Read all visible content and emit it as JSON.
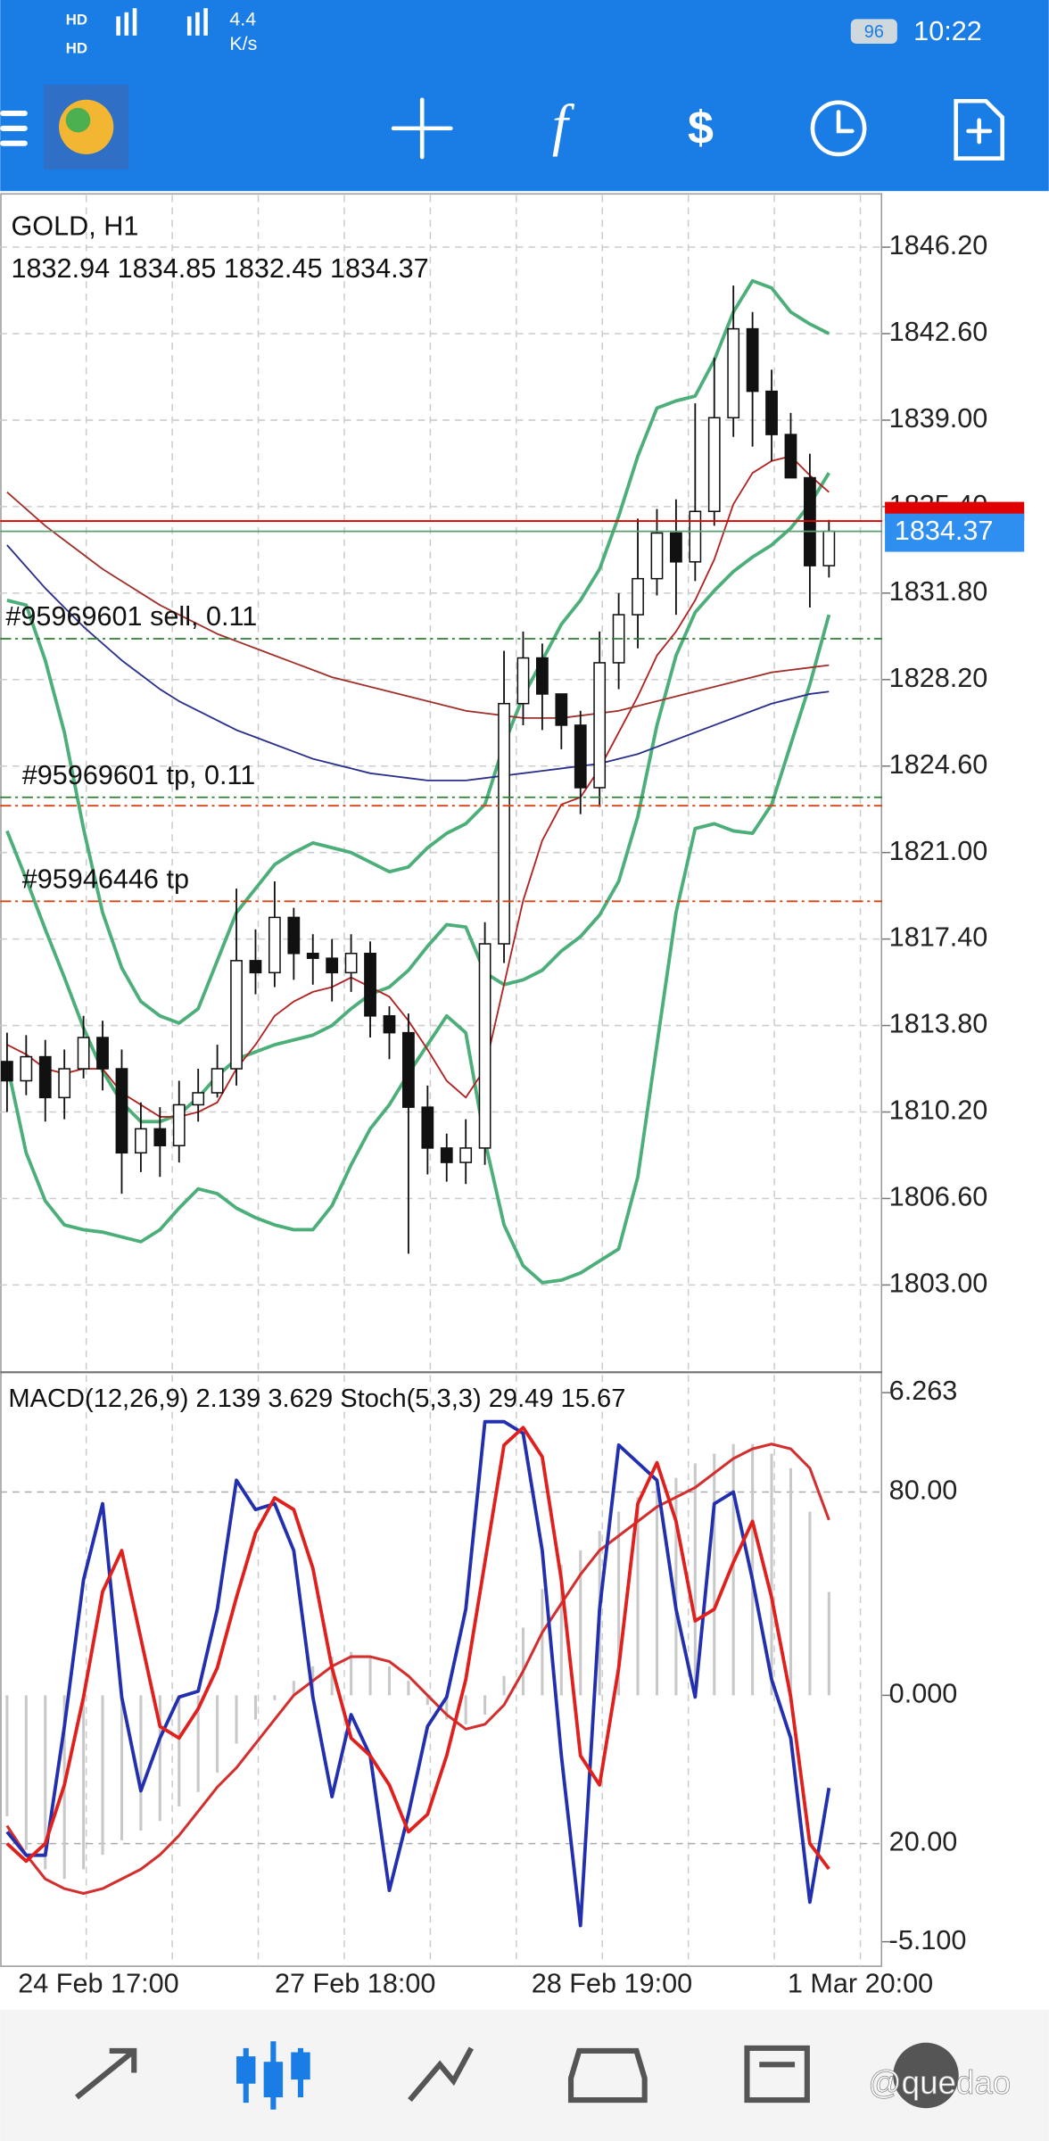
{
  "status_bar": {
    "speed": "4.4",
    "speed_unit": "K/s",
    "battery": "96",
    "time": "10:22"
  },
  "chart": {
    "symbol": "GOLD, H1",
    "ylim": [
      1799.48,
      1848.36
    ],
    "grid": true,
    "yticks": [
      {
        "value": 1846.2,
        "label": "1846.20"
      },
      {
        "value": 1842.6,
        "label": "1842.60"
      },
      {
        "value": 1839,
        "label": "1839.00"
      },
      {
        "value": 1835.4,
        "label": "1835.40"
      },
      {
        "value": 1831.8,
        "label": "1831.80"
      },
      {
        "value": 1828.2,
        "label": "1828.20"
      },
      {
        "value": 1824.6,
        "label": "1824.60"
      },
      {
        "value": 1821,
        "label": "1821.00"
      },
      {
        "value": 1817.4,
        "label": "1817.40"
      },
      {
        "value": 1813.8,
        "label": "1813.80"
      },
      {
        "value": 1810.2,
        "label": "1810.20"
      },
      {
        "value": 1806.6,
        "label": "1806.60"
      },
      {
        "value": 1803,
        "label": "1803.00"
      }
    ],
    "candles": {
      "open": [
        1812.3,
        1811.5,
        1812.5,
        1810.8,
        1812,
        1813.3,
        1812,
        1808.5,
        1809.5,
        1808.8,
        1810.5,
        1811,
        1812,
        1816.5,
        1816,
        1818.3,
        1816.8,
        1816.6,
        1816,
        1816.8,
        1814.2,
        1813.5,
        1810.4,
        1808.7,
        1808.1,
        1808.7,
        1817.2,
        1827.2,
        1829.1,
        1827.6,
        1826.3,
        1823.7,
        1828.9,
        1830.9,
        1832.4,
        1834.3,
        1833.1,
        1835.2,
        1839.1,
        1842.8,
        1840.2,
        1838.4,
        1836.6,
        1832.94
      ],
      "high": [
        1813.5,
        1813.4,
        1813.2,
        1812.8,
        1814.2,
        1814,
        1812.8,
        1810.6,
        1810.4,
        1811.5,
        1812,
        1813,
        1819.5,
        1817.8,
        1819.8,
        1818.7,
        1817.6,
        1817.4,
        1817.6,
        1817.3,
        1814.6,
        1814.3,
        1811.3,
        1809.3,
        1809.9,
        1818.1,
        1829.4,
        1830.2,
        1829.7,
        1827.5,
        1826.9,
        1830.2,
        1831.8,
        1834.9,
        1835.3,
        1835.7,
        1839.7,
        1841.6,
        1844.6,
        1843.5,
        1841.1,
        1839.3,
        1837.6,
        1834.85
      ],
      "low": [
        1810.2,
        1810.9,
        1809.8,
        1809.9,
        1811.6,
        1811.1,
        1806.8,
        1807.7,
        1807.5,
        1808.1,
        1809.8,
        1810.8,
        1811.3,
        1815.1,
        1815.4,
        1815.7,
        1815.5,
        1814.8,
        1815.2,
        1813.3,
        1812.4,
        1804.3,
        1807.6,
        1807.3,
        1807.2,
        1808,
        1816.4,
        1826.3,
        1826.1,
        1825.3,
        1822.6,
        1822.9,
        1827.8,
        1829.5,
        1831.7,
        1830.9,
        1832.3,
        1834.6,
        1838.3,
        1837.9,
        1837.3,
        1836.8,
        1831.2,
        1832.45
      ],
      "close": [
        1811.5,
        1812.5,
        1810.8,
        1812,
        1813.3,
        1812,
        1808.5,
        1809.5,
        1808.8,
        1810.5,
        1811,
        1812,
        1816.5,
        1816,
        1818.3,
        1816.8,
        1816.6,
        1816,
        1816.8,
        1814.2,
        1813.5,
        1810.4,
        1808.7,
        1808.1,
        1808.7,
        1817.2,
        1827.2,
        1829.1,
        1827.6,
        1826.3,
        1823.7,
        1828.9,
        1830.9,
        1832.4,
        1834.3,
        1833.1,
        1835.2,
        1839.1,
        1842.8,
        1840.2,
        1838.4,
        1836.6,
        1832.94,
        1834.37
      ]
    },
    "lines": [
      {
        "color": "#4caf7a",
        "values": [
          1831.5,
          1831.3,
          1829,
          1826,
          1822,
          1818.5,
          1816.2,
          1814.8,
          1814.2,
          1813.9,
          1814.5,
          1816.5,
          1818.5,
          1819.5,
          1820.5,
          1821,
          1821.4,
          1821.2,
          1821,
          1820.6,
          1820.2,
          1820.4,
          1821.2,
          1821.8,
          1822.2,
          1823,
          1825.5,
          1827.5,
          1829,
          1830.5,
          1831.5,
          1832.8,
          1835,
          1837.5,
          1839.5,
          1839.8,
          1840,
          1841.5,
          1843.5,
          1844.8,
          1844.5,
          1843.5,
          1843,
          1842.6
        ]
      },
      {
        "color": "#4caf7a",
        "values": [
          1821.9,
          1819.9,
          1817.8,
          1815.8,
          1813.7,
          1811.9,
          1810.6,
          1809.8,
          1809.8,
          1810.1,
          1810.8,
          1811.7,
          1812.4,
          1812.7,
          1813,
          1813.2,
          1813.4,
          1813.8,
          1814.5,
          1815.1,
          1815.4,
          1816.1,
          1817.1,
          1818,
          1817.9,
          1816,
          1815.5,
          1815.7,
          1816.1,
          1816.9,
          1817.5,
          1818.4,
          1819.8,
          1822.5,
          1826.3,
          1829.2,
          1831,
          1831.9,
          1832.7,
          1833.3,
          1833.8,
          1834.5,
          1835.5,
          1836.8
        ]
      },
      {
        "color": "#4caf7a",
        "values": [
          1812.2,
          1808.5,
          1806.5,
          1805.5,
          1805.3,
          1805.2,
          1805,
          1804.8,
          1805.3,
          1806.2,
          1807,
          1806.8,
          1806.2,
          1805.8,
          1805.5,
          1805.3,
          1805.3,
          1806.3,
          1808,
          1809.5,
          1810.5,
          1811.8,
          1813,
          1814.2,
          1813.5,
          1809,
          1805.5,
          1803.8,
          1803.1,
          1803.2,
          1803.5,
          1804,
          1804.5,
          1807.5,
          1813,
          1818.5,
          1822,
          1822.2,
          1821.9,
          1821.8,
          1823,
          1825.5,
          1828,
          1830.9
        ]
      },
      {
        "color": "#b22222",
        "values": [
          1813,
          1812.6,
          1812,
          1811.8,
          1812,
          1812,
          1811,
          1810.5,
          1810,
          1810,
          1810.2,
          1810.6,
          1812,
          1813,
          1814.2,
          1814.8,
          1815.2,
          1815.4,
          1815.8,
          1815.4,
          1815,
          1814,
          1812.8,
          1811.5,
          1810.8,
          1812,
          1815.5,
          1819,
          1821.5,
          1823,
          1823.3,
          1824.5,
          1826,
          1827.5,
          1829.2,
          1830.2,
          1831.5,
          1833.2,
          1835.5,
          1836.8,
          1837.3,
          1837.5,
          1836.7,
          1836
        ]
      },
      {
        "color": "#a0302a",
        "values": [
          1836,
          1835.3,
          1834.6,
          1834,
          1833.4,
          1832.8,
          1832.3,
          1831.8,
          1831.3,
          1830.9,
          1830.5,
          1830.1,
          1829.8,
          1829.5,
          1829.2,
          1828.9,
          1828.6,
          1828.3,
          1828.1,
          1827.9,
          1827.7,
          1827.5,
          1827.3,
          1827.1,
          1826.9,
          1826.8,
          1826.7,
          1826.6,
          1826.6,
          1826.6,
          1826.7,
          1826.8,
          1826.9,
          1827.1,
          1827.3,
          1827.5,
          1827.7,
          1827.9,
          1828.1,
          1828.3,
          1828.5,
          1828.6,
          1828.7,
          1828.8
        ]
      },
      {
        "color": "#2b2f8c",
        "values": [
          1833.8,
          1832.9,
          1832,
          1831.2,
          1830.4,
          1829.7,
          1829,
          1828.4,
          1827.8,
          1827.3,
          1826.9,
          1826.5,
          1826.1,
          1825.8,
          1825.5,
          1825.2,
          1824.9,
          1824.7,
          1824.5,
          1824.3,
          1824.2,
          1824.1,
          1824,
          1824,
          1824,
          1824.1,
          1824.2,
          1824.3,
          1824.4,
          1824.5,
          1824.6,
          1824.7,
          1824.9,
          1825.1,
          1825.4,
          1825.7,
          1826,
          1826.3,
          1826.6,
          1826.9,
          1827.2,
          1827.4,
          1827.6,
          1827.7
        ]
      }
    ],
    "price_lines": [
      {
        "value": 1834.8,
        "color": "#e00000"
      },
      {
        "value": 1834.37,
        "color": "#5a9e6f"
      }
    ],
    "orders": [
      {
        "label": "#95969601 sell, 0.11",
        "price": 1829.9,
        "color": "#2e7d32"
      },
      {
        "label": "#95969601 tp, 0.11",
        "price": 1823.3,
        "color": "#2e7d32"
      },
      {
        "label": null,
        "price": 1822.95,
        "color": "#d84315"
      },
      {
        "label": "#95946446 tp",
        "price": 1818.97,
        "color": "#d84315"
      }
    ],
    "x_labels": [
      "24 Feb 17:00",
      "27 Feb 18:00",
      "28 Feb 19:00",
      "1 Mar 20:00"
    ]
  },
  "lower": {
    "macd_name": "MACD(12,26,9)",
    "stoch_name": "Stoch(5,3,3)",
    "macd_ylim": [
      -5.578,
      6.657
    ],
    "macd_yticks": [
      6.263,
      {
        "value": 0,
        "label": "0.000"
      },
      {
        "value": -5.1,
        "label": "-5.100"
      }
    ],
    "stoch_ylim": [
      -0.7,
      100.2
    ],
    "stoch_yticks": [
      {
        "value": 80,
        "label": "80.00"
      },
      {
        "value": 20,
        "label": "20.00"
      }
    ],
    "histogram": {
      "color": "#c8c8c8",
      "values": [
        -2.5,
        -3.2,
        -3.6,
        -3.8,
        -3.6,
        -3.3,
        -3,
        -2.8,
        -2.6,
        -2.3,
        -2,
        -1.6,
        -1,
        -0.5,
        -0.1,
        0.3,
        0.6,
        0.8,
        0.9,
        0.8,
        0.6,
        0.3,
        -0.2,
        -0.5,
        -0.6,
        -0.4,
        0.4,
        1.4,
        2.2,
        2.7,
        3,
        3.4,
        3.8,
        4.1,
        4.3,
        4.5,
        4.8,
        5,
        5.2,
        5.2,
        5,
        4.7,
        3.8,
        2.139
      ]
    },
    "signal": {
      "color": "#d32f2f",
      "values": [
        -2.7,
        -3.3,
        -3.8,
        -4,
        -4.1,
        -4,
        -3.8,
        -3.6,
        -3.3,
        -2.9,
        -2.4,
        -1.9,
        -1.5,
        -1,
        -0.5,
        0,
        0.3,
        0.6,
        0.8,
        0.8,
        0.7,
        0.4,
        0,
        -0.4,
        -0.7,
        -0.6,
        -0.2,
        0.5,
        1.3,
        1.9,
        2.5,
        3,
        3.3,
        3.6,
        3.9,
        4.1,
        4.3,
        4.6,
        4.9,
        5.1,
        5.2,
        5.1,
        4.7,
        3.629
      ]
    },
    "stoch_main": {
      "color": "#2230b0",
      "values": [
        22,
        18,
        18,
        40,
        65,
        78,
        45,
        29,
        38,
        45,
        46,
        60,
        82,
        77,
        78,
        70,
        45,
        28,
        42,
        35,
        12,
        25,
        40,
        45,
        60,
        92,
        92,
        90,
        70,
        35,
        6,
        60,
        88,
        85,
        82,
        60,
        45,
        78,
        80,
        65,
        48,
        38,
        10,
        29.49
      ]
    },
    "stoch_signal": {
      "color": "#e0201c",
      "values": [
        20,
        17,
        20,
        30,
        45,
        63,
        70,
        55,
        40,
        38,
        43,
        50,
        62,
        73,
        79,
        77,
        67,
        50,
        38,
        35,
        30,
        22,
        25,
        35,
        48,
        68,
        88,
        91,
        86,
        65,
        35,
        30,
        50,
        78,
        85,
        75,
        58,
        60,
        68,
        75,
        62,
        45,
        20,
        15.67
      ]
    }
  },
  "watermark": "@quedao"
}
